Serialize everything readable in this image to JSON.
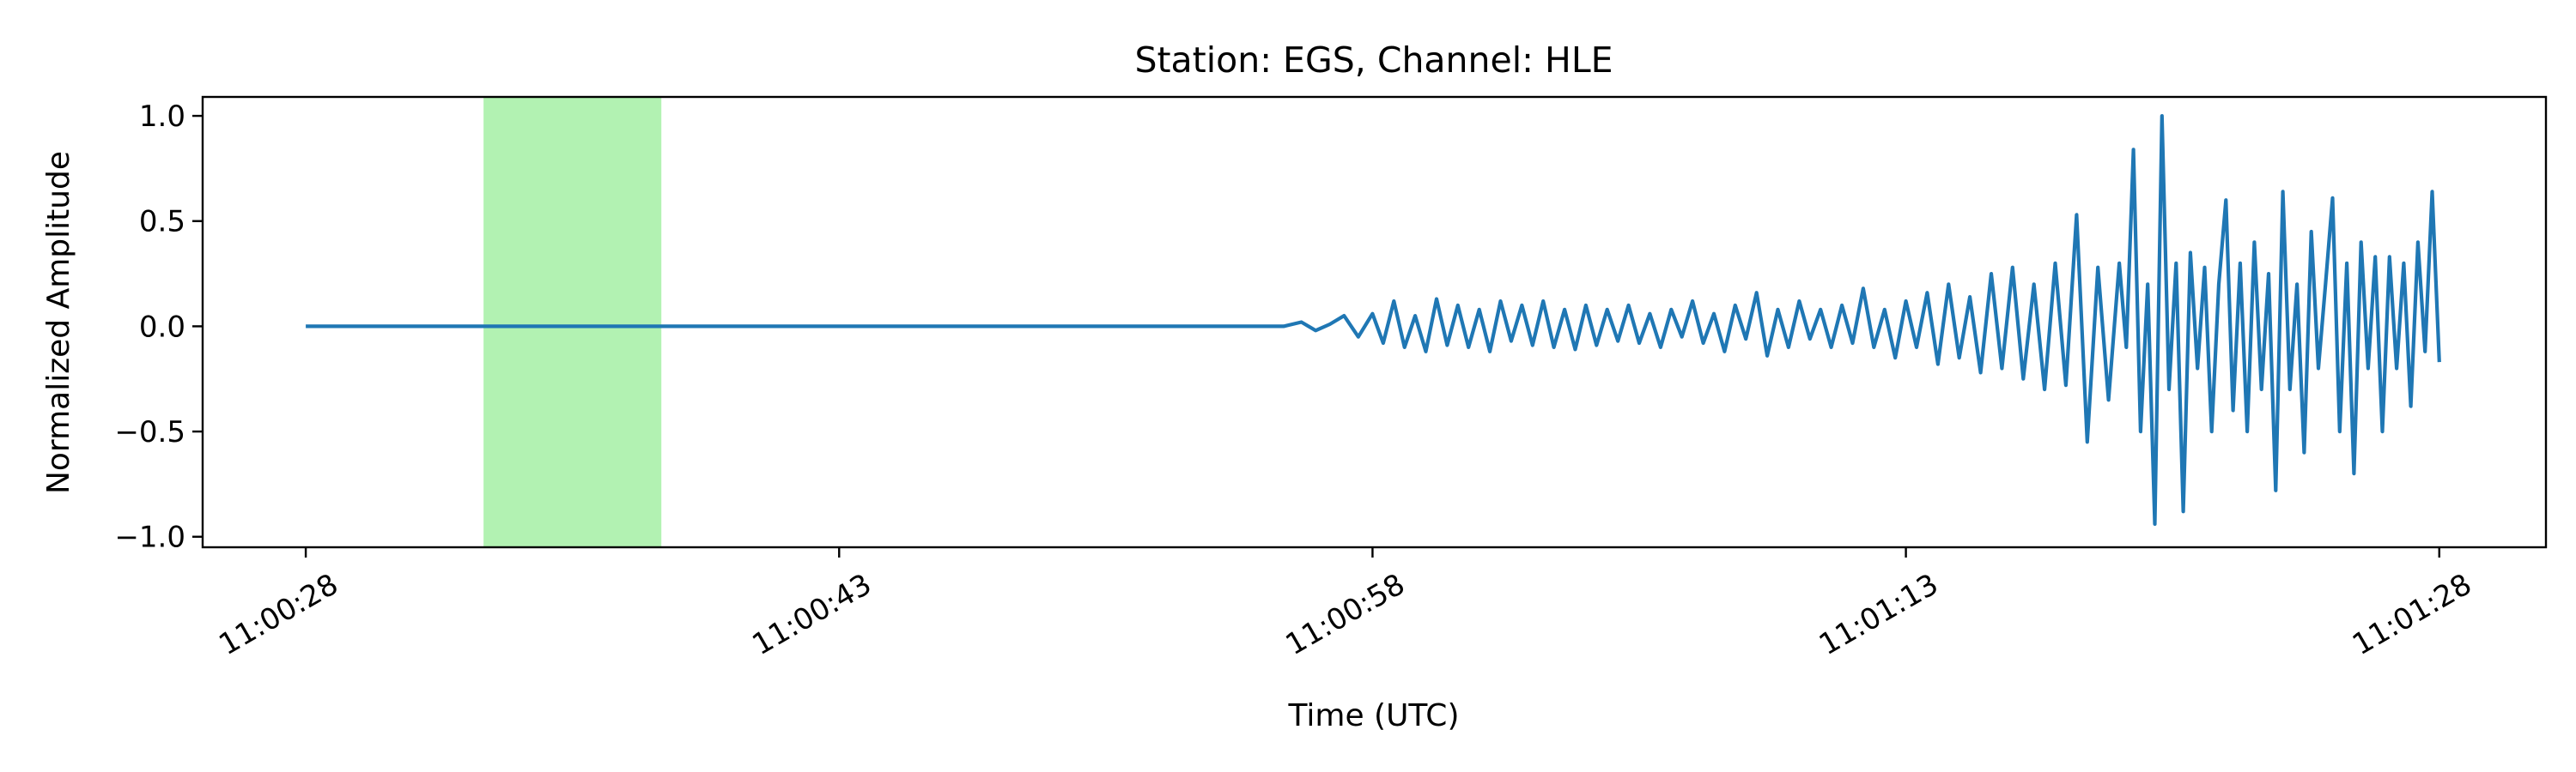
{
  "chart_data": {
    "type": "line",
    "title": "Station: EGS, Channel: HLE",
    "xlabel": "Time (UTC)",
    "ylabel": "Normalized Amplitude",
    "x_ticks": [
      "11:00:28",
      "11:00:43",
      "11:00:58",
      "11:01:13",
      "11:01:28"
    ],
    "x_tick_seconds": [
      28,
      43,
      58,
      73,
      88
    ],
    "x_start": "11:00:28",
    "x_end": "11:01:28",
    "xlim_seconds": [
      25.1,
      91.0
    ],
    "ylim": [
      -1.05,
      1.09
    ],
    "y_ticks": [
      -1.0,
      -0.5,
      0.0,
      0.5,
      1.0
    ],
    "y_tick_labels": [
      "−1.0",
      "−0.5",
      "0.0",
      "0.5",
      "1.0"
    ],
    "grid": false,
    "highlight_span": {
      "x_start_seconds": 33.0,
      "x_end_seconds": 38.0,
      "color": "#b2f2b2"
    },
    "series": [
      {
        "color": "#1f77b4",
        "x_seconds": [
          28.0,
          32.0,
          36.0,
          40.0,
          44.0,
          48.0,
          52.0,
          55.0,
          55.5,
          56.0,
          56.4,
          56.8,
          57.2,
          57.6,
          58.0,
          58.3,
          58.6,
          58.9,
          59.2,
          59.5,
          59.8,
          60.1,
          60.4,
          60.7,
          61.0,
          61.3,
          61.6,
          61.9,
          62.2,
          62.5,
          62.8,
          63.1,
          63.4,
          63.7,
          64.0,
          64.3,
          64.6,
          64.9,
          65.2,
          65.5,
          65.8,
          66.1,
          66.4,
          66.7,
          67.0,
          67.3,
          67.6,
          67.9,
          68.2,
          68.5,
          68.8,
          69.1,
          69.4,
          69.7,
          70.0,
          70.3,
          70.6,
          70.9,
          71.2,
          71.5,
          71.8,
          72.1,
          72.4,
          72.7,
          73.0,
          73.3,
          73.6,
          73.9,
          74.2,
          74.5,
          74.8,
          75.1,
          75.4,
          75.7,
          76.0,
          76.3,
          76.6,
          76.9,
          77.2,
          77.5,
          77.8,
          78.1,
          78.4,
          78.7,
          79.0,
          79.2,
          79.4,
          79.6,
          79.8,
          80.0,
          80.2,
          80.4,
          80.6,
          80.8,
          81.0,
          81.2,
          81.4,
          81.6,
          81.8,
          82.0,
          82.2,
          82.4,
          82.6,
          82.8,
          83.0,
          83.2,
          83.4,
          83.6,
          83.8,
          84.0,
          84.2,
          84.4,
          84.6,
          84.8,
          85.0,
          85.2,
          85.4,
          85.6,
          85.8,
          86.0,
          86.2,
          86.4,
          86.6,
          86.8,
          87.0,
          87.2,
          87.4,
          87.6,
          87.8,
          88.0
        ],
        "y": [
          0.0,
          0.0,
          0.0,
          0.0,
          0.0,
          0.0,
          0.0,
          0.0,
          0.0,
          0.02,
          -0.02,
          0.01,
          0.05,
          -0.05,
          0.06,
          -0.08,
          0.12,
          -0.1,
          0.05,
          -0.12,
          0.13,
          -0.09,
          0.1,
          -0.1,
          0.08,
          -0.12,
          0.12,
          -0.07,
          0.1,
          -0.09,
          0.12,
          -0.1,
          0.08,
          -0.11,
          0.1,
          -0.09,
          0.08,
          -0.07,
          0.1,
          -0.08,
          0.06,
          -0.1,
          0.08,
          -0.05,
          0.12,
          -0.08,
          0.06,
          -0.12,
          0.1,
          -0.06,
          0.16,
          -0.14,
          0.08,
          -0.1,
          0.12,
          -0.06,
          0.08,
          -0.1,
          0.1,
          -0.08,
          0.18,
          -0.1,
          0.08,
          -0.15,
          0.12,
          -0.1,
          0.16,
          -0.18,
          0.2,
          -0.15,
          0.14,
          -0.22,
          0.25,
          -0.2,
          0.28,
          -0.25,
          0.2,
          -0.3,
          0.3,
          -0.28,
          0.53,
          -0.55,
          0.28,
          -0.35,
          0.3,
          -0.1,
          0.84,
          -0.5,
          0.2,
          -0.94,
          1.0,
          -0.3,
          0.3,
          -0.88,
          0.35,
          -0.2,
          0.28,
          -0.5,
          0.2,
          0.6,
          -0.4,
          0.3,
          -0.5,
          0.4,
          -0.3,
          0.25,
          -0.78,
          0.64,
          -0.3,
          0.2,
          -0.6,
          0.45,
          -0.2,
          0.2,
          0.61,
          -0.5,
          0.3,
          -0.7,
          0.4,
          -0.2,
          0.33,
          -0.5,
          0.33,
          -0.2,
          0.3,
          -0.38,
          0.4,
          -0.12,
          0.64,
          -0.17
        ],
        "line_width": 4.2
      }
    ]
  }
}
